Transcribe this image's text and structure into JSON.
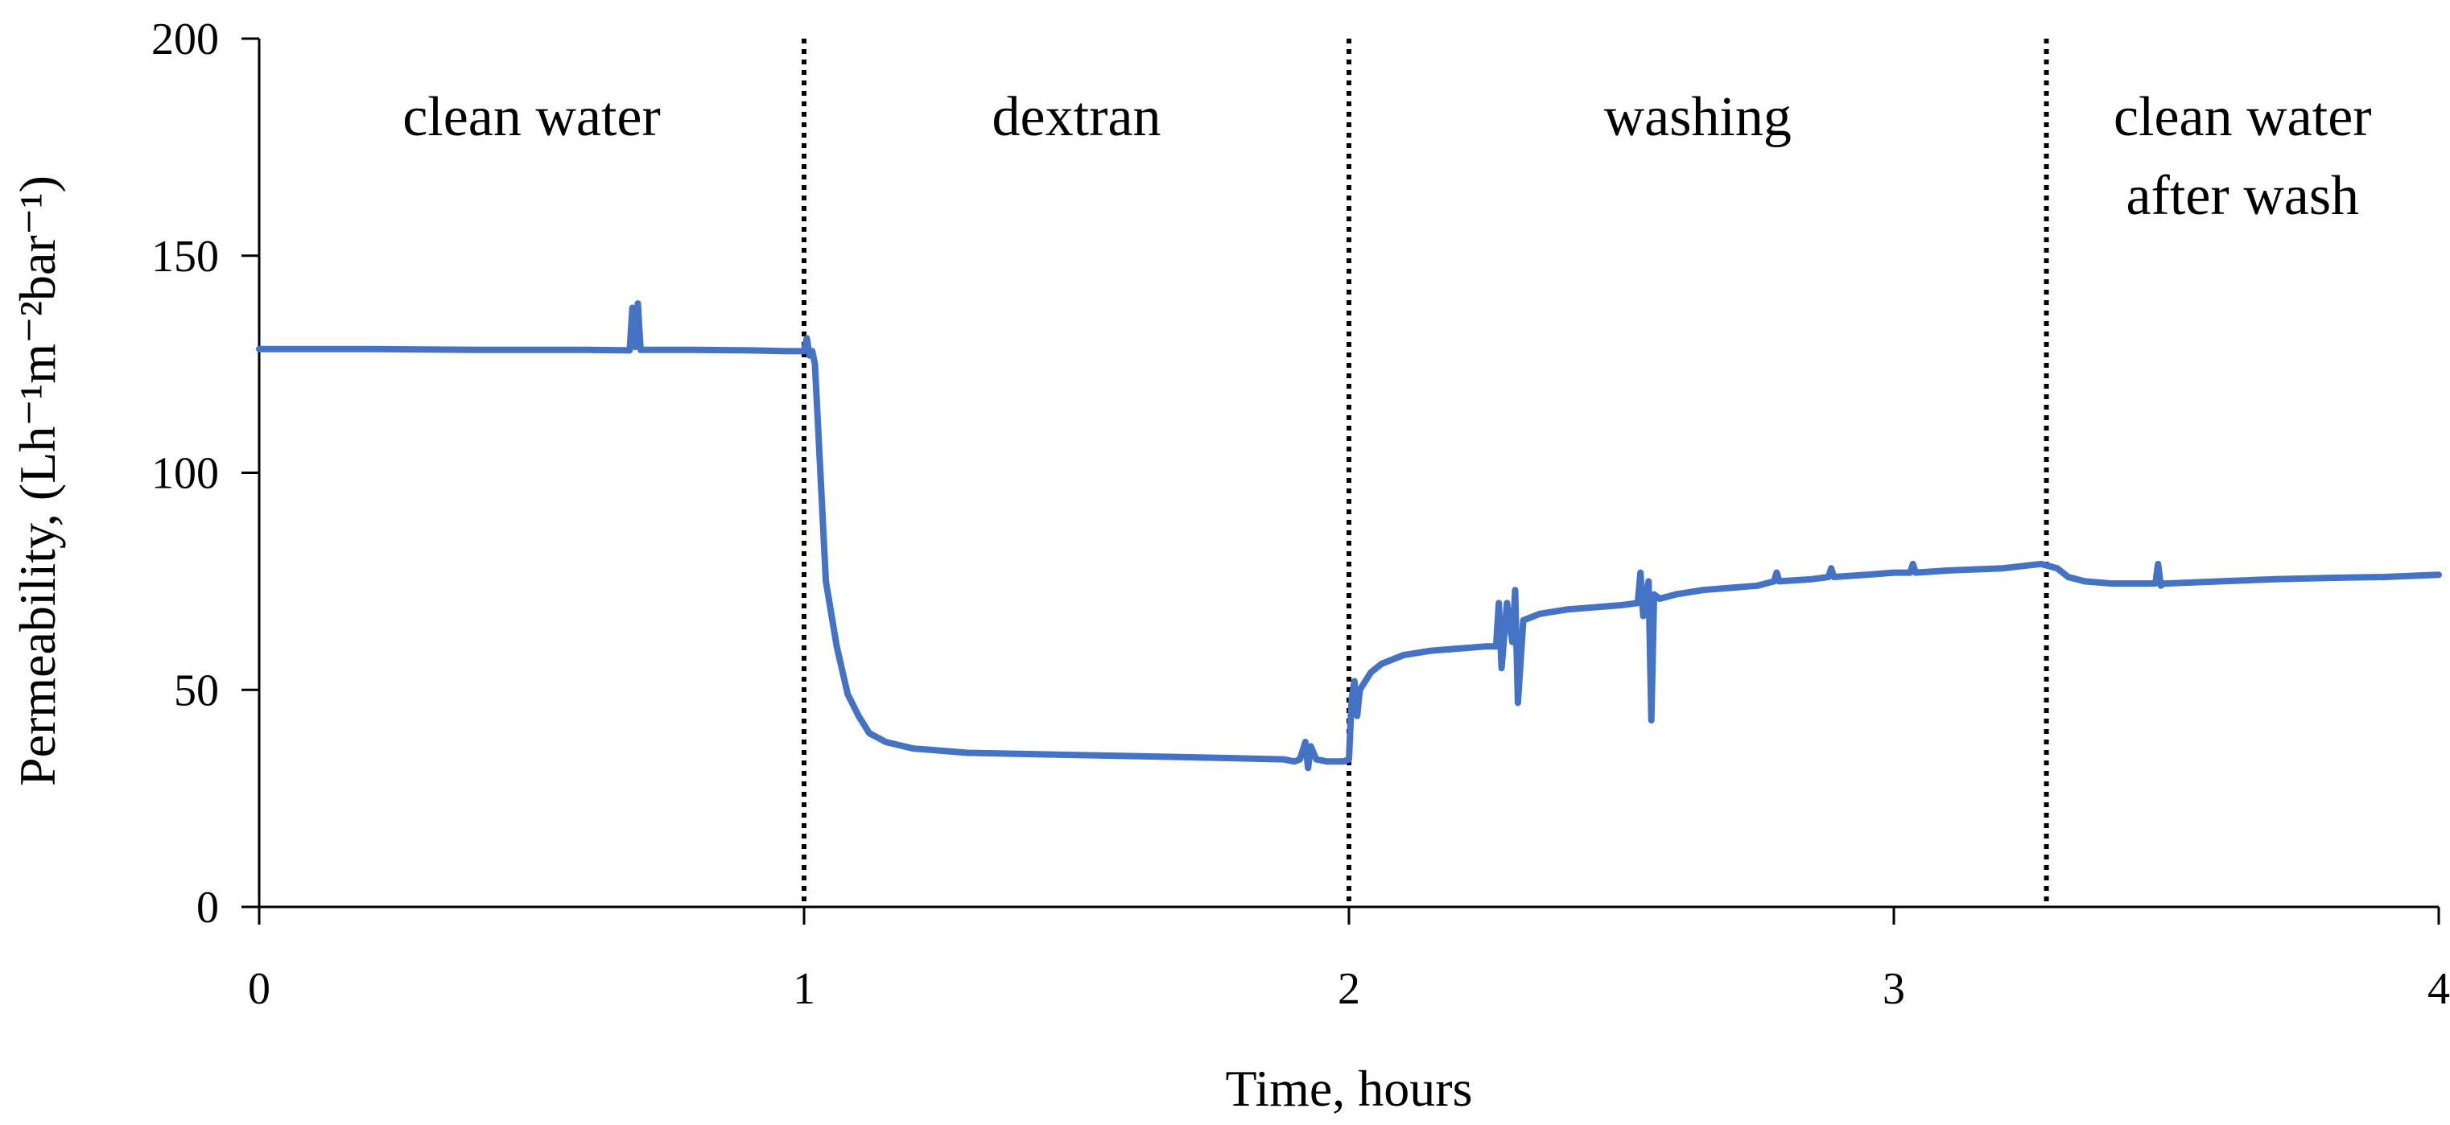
{
  "chart_data": {
    "type": "line",
    "xlabel": "Time, hours",
    "ylabel": "Permeability, (Lh⁻¹m⁻²bar⁻¹)",
    "xlim": [
      0,
      4
    ],
    "ylim": [
      0,
      200
    ],
    "x_ticks": [
      0,
      1,
      2,
      3,
      4
    ],
    "x_tick_labels": [
      "0",
      "1",
      "2",
      "3",
      "4"
    ],
    "y_ticks": [
      0,
      50,
      100,
      150,
      200
    ],
    "y_tick_labels": [
      "0",
      "50",
      "100",
      "150",
      "200"
    ],
    "grid": false,
    "legend": "none",
    "line_color": "#4472C4",
    "phase_boundaries": [
      1.0,
      2.0,
      3.28
    ],
    "phases": [
      {
        "label": "clean water",
        "x_center": 0.5
      },
      {
        "label": "dextran",
        "x_center": 1.5
      },
      {
        "label": "washing",
        "x_center": 2.64
      },
      {
        "label": "clean water\nafter wash",
        "x_center": 3.64
      }
    ],
    "series": [
      {
        "x": [
          0,
          0.2,
          0.4,
          0.6,
          0.68,
          0.685,
          0.69,
          0.695,
          0.7,
          0.8,
          0.9,
          0.97,
          0.99,
          1.0,
          1.005,
          1.01,
          1.015,
          1.02,
          1.03,
          1.04,
          1.06,
          1.08,
          1.1,
          1.12,
          1.15,
          1.2,
          1.3,
          1.5,
          1.7,
          1.88,
          1.9,
          1.91,
          1.92,
          1.925,
          1.93,
          1.94,
          1.96,
          1.99,
          2.0,
          2.005,
          2.01,
          2.015,
          2.02,
          2.04,
          2.06,
          2.1,
          2.15,
          2.2,
          2.25,
          2.27,
          2.275,
          2.28,
          2.29,
          2.3,
          2.305,
          2.31,
          2.32,
          2.35,
          2.4,
          2.45,
          2.5,
          2.53,
          2.535,
          2.54,
          2.55,
          2.555,
          2.56,
          2.57,
          2.6,
          2.65,
          2.7,
          2.75,
          2.78,
          2.785,
          2.79,
          2.85,
          2.88,
          2.885,
          2.89,
          2.95,
          3.0,
          3.03,
          3.035,
          3.04,
          3.1,
          3.2,
          3.27,
          3.3,
          3.32,
          3.35,
          3.4,
          3.48,
          3.485,
          3.49,
          3.495,
          3.5,
          3.6,
          3.7,
          3.8,
          3.9,
          4.0
        ],
        "y": [
          128.5,
          128.5,
          128.3,
          128.3,
          128.2,
          138,
          129,
          139,
          128.3,
          128.3,
          128.2,
          128,
          128,
          128,
          131,
          127,
          128,
          125,
          100,
          75,
          60,
          49,
          44,
          40,
          38,
          36.5,
          35.5,
          35,
          34.5,
          34,
          33.5,
          34,
          38,
          32,
          37,
          34,
          33.5,
          33.5,
          34,
          48,
          52,
          44,
          50,
          54,
          56,
          58,
          59,
          59.5,
          60,
          60,
          70,
          55,
          70,
          61,
          73,
          47,
          66,
          67.5,
          68.5,
          69,
          69.5,
          70,
          77,
          67,
          75,
          43,
          72,
          71,
          72,
          73,
          73.5,
          74,
          75,
          77,
          75,
          75.5,
          76,
          78,
          76,
          76.5,
          77,
          77,
          79,
          77,
          77.5,
          78,
          79,
          78,
          76,
          75,
          74.5,
          74.5,
          79,
          74,
          74.5,
          74.5,
          75,
          75.5,
          75.8,
          76,
          76.5
        ]
      }
    ]
  }
}
